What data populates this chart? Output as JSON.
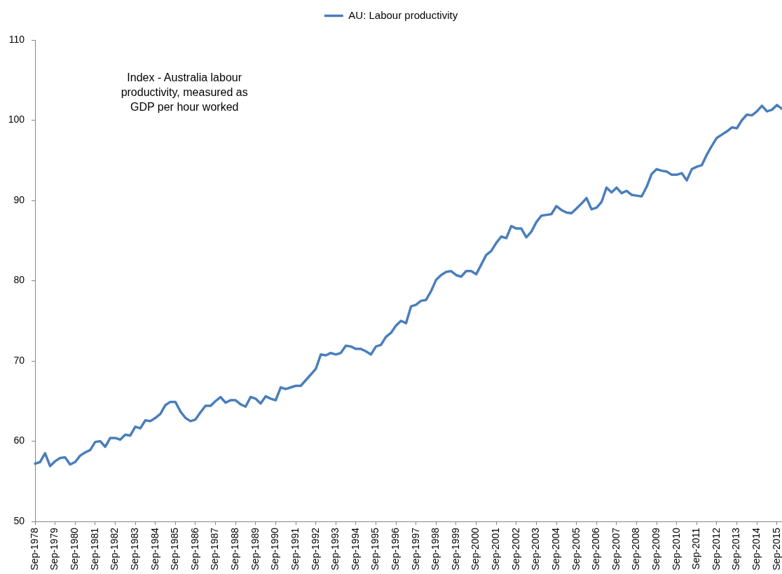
{
  "chart_data": {
    "type": "line",
    "categories": [
      "Sep-1978",
      null,
      null,
      null,
      "Sep-1979",
      null,
      null,
      null,
      "Sep-1980",
      null,
      null,
      null,
      "Sep-1981",
      null,
      null,
      null,
      "Sep-1982",
      null,
      null,
      null,
      "Sep-1983",
      null,
      null,
      null,
      "Sep-1984",
      null,
      null,
      null,
      "Sep-1985",
      null,
      null,
      null,
      "Sep-1986",
      null,
      null,
      null,
      "Sep-1987",
      null,
      null,
      null,
      "Sep-1988",
      null,
      null,
      null,
      "Sep-1989",
      null,
      null,
      null,
      "Sep-1990",
      null,
      null,
      null,
      "Sep-1991",
      null,
      null,
      null,
      "Sep-1992",
      null,
      null,
      null,
      "Sep-1993",
      null,
      null,
      null,
      "Sep-1994",
      null,
      null,
      null,
      "Sep-1995",
      null,
      null,
      null,
      "Sep-1996",
      null,
      null,
      null,
      "Sep-1997",
      null,
      null,
      null,
      "Sep-1998",
      null,
      null,
      null,
      "Sep-1999",
      null,
      null,
      null,
      "Sep-2000",
      null,
      null,
      null,
      "Sep-2001",
      null,
      null,
      null,
      "Sep-2002",
      null,
      null,
      null,
      "Sep-2003",
      null,
      null,
      null,
      "Sep-2004",
      null,
      null,
      null,
      "Sep-2005",
      null,
      null,
      null,
      "Sep-2006",
      null,
      null,
      null,
      "Sep-2007",
      null,
      null,
      null,
      "Sep-2008",
      null,
      null,
      null,
      "Sep-2009",
      null,
      null,
      null,
      "Sep-2010",
      null,
      null,
      null,
      "Sep-2011",
      null,
      null,
      null,
      "Sep-2012",
      null,
      null,
      null,
      "Sep-2013",
      null,
      null,
      null,
      "Sep-2014",
      null,
      null,
      null,
      "Sep-2015",
      null
    ],
    "series": [
      {
        "name": "AU: Labour productivity",
        "color": "#4a7ebb",
        "values": [
          57.2,
          57.4,
          58.5,
          56.9,
          57.5,
          57.9,
          58.0,
          57.1,
          57.4,
          58.2,
          58.6,
          58.9,
          59.9,
          60.0,
          59.3,
          60.4,
          60.4,
          60.2,
          60.8,
          60.7,
          61.8,
          61.6,
          62.6,
          62.5,
          62.9,
          63.4,
          64.5,
          64.9,
          64.9,
          63.7,
          62.9,
          62.5,
          62.7,
          63.6,
          64.4,
          64.4,
          65.0,
          65.5,
          64.8,
          65.1,
          65.1,
          64.6,
          64.3,
          65.5,
          65.3,
          64.7,
          65.6,
          65.3,
          65.1,
          66.7,
          66.5,
          66.7,
          66.9,
          66.9,
          67.6,
          68.3,
          69.0,
          70.8,
          70.7,
          71.0,
          70.8,
          71.0,
          71.9,
          71.8,
          71.5,
          71.5,
          71.2,
          70.8,
          71.8,
          72.0,
          73.0,
          73.5,
          74.4,
          75.0,
          74.7,
          76.8,
          77.0,
          77.5,
          77.6,
          78.7,
          80.1,
          80.7,
          81.1,
          81.2,
          80.7,
          80.5,
          81.2,
          81.2,
          80.8,
          82.0,
          83.2,
          83.7,
          84.7,
          85.5,
          85.3,
          86.8,
          86.5,
          86.5,
          85.4,
          86.1,
          87.3,
          88.1,
          88.2,
          88.3,
          89.3,
          88.8,
          88.5,
          88.4,
          89.0,
          89.6,
          90.3,
          88.9,
          89.1,
          89.8,
          91.6,
          91.0,
          91.6,
          90.9,
          91.2,
          90.7,
          90.6,
          90.5,
          91.7,
          93.3,
          93.9,
          93.7,
          93.6,
          93.2,
          93.2,
          93.4,
          92.5,
          93.9,
          94.2,
          94.4,
          95.7,
          96.8,
          97.8,
          98.2,
          98.6,
          99.1,
          99.0,
          100.0,
          100.7,
          100.6,
          101.1,
          101.8,
          101.1,
          101.3,
          101.9,
          101.4
        ]
      }
    ],
    "ylim": [
      50,
      110
    ],
    "yticks": [
      50,
      60,
      70,
      80,
      90,
      100,
      110
    ],
    "legend": "top",
    "annotations": [
      "Index - Australia labour productivity, measured as GDP per hour worked"
    ]
  }
}
